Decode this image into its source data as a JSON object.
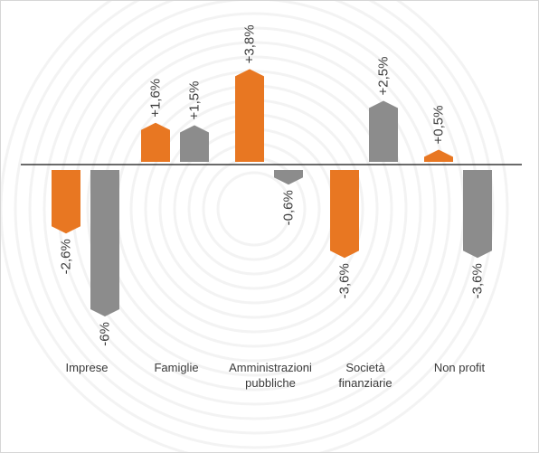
{
  "chart_data": {
    "type": "bar",
    "categories": [
      {
        "lines": [
          "Imprese"
        ]
      },
      {
        "lines": [
          "Famiglie"
        ]
      },
      {
        "lines": [
          "Amministrazioni",
          "pubbliche"
        ]
      },
      {
        "lines": [
          "Società",
          "finanziarie"
        ]
      },
      {
        "lines": [
          "Non profit"
        ]
      }
    ],
    "series": [
      {
        "color": "#e87722",
        "values": [
          -2.6,
          1.6,
          3.8,
          -3.6,
          0.5
        ],
        "labels": [
          "-2,6%",
          "+1,6%",
          "+3,8%",
          "-3,6%",
          "+0,5%"
        ]
      },
      {
        "color": "#8c8c8c",
        "values": [
          -6.0,
          1.5,
          -0.6,
          2.5,
          -3.6
        ],
        "labels": [
          "-6%",
          "+1,5%",
          "-0,6%",
          "+2,5%",
          "-3,6%"
        ]
      }
    ],
    "ylim": [
      -6.0,
      3.8
    ],
    "grid": false,
    "legend": "none"
  }
}
